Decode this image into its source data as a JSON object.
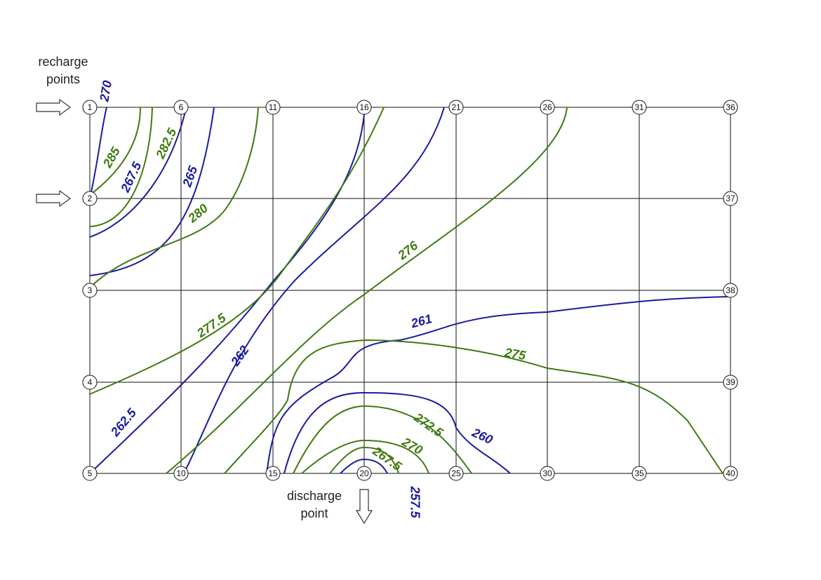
{
  "recharge_label": "recharge points",
  "discharge_label": "discharge point",
  "nodes": [
    "1",
    "2",
    "3",
    "4",
    "5",
    "6",
    "10",
    "11",
    "15",
    "16",
    "20",
    "21",
    "25",
    "26",
    "30",
    "31",
    "35",
    "36",
    "37",
    "38",
    "39",
    "40"
  ],
  "contour_labels": [
    {
      "label": "270",
      "color": "#1a1aa0"
    },
    {
      "label": "285",
      "color": "#3f7a10"
    },
    {
      "label": "267.5",
      "color": "#1a1aa0"
    },
    {
      "label": "282.5",
      "color": "#3f7a10"
    },
    {
      "label": "265",
      "color": "#1a1aa0"
    },
    {
      "label": "280",
      "color": "#3f7a10"
    },
    {
      "label": "276",
      "color": "#3f7a10"
    },
    {
      "label": "277.5",
      "color": "#3f7a10"
    },
    {
      "label": "261",
      "color": "#1a1aa0"
    },
    {
      "label": "262",
      "color": "#1a1aa0"
    },
    {
      "label": "275",
      "color": "#3f7a10"
    },
    {
      "label": "262.5",
      "color": "#1a1aa0"
    },
    {
      "label": "272.5",
      "color": "#3f7a10"
    },
    {
      "label": "260",
      "color": "#1a1aa0"
    },
    {
      "label": "270",
      "color": "#3f7a10"
    },
    {
      "label": "267.5",
      "color": "#3f7a10"
    },
    {
      "label": "257.5",
      "color": "#1a1aa0"
    }
  ]
}
